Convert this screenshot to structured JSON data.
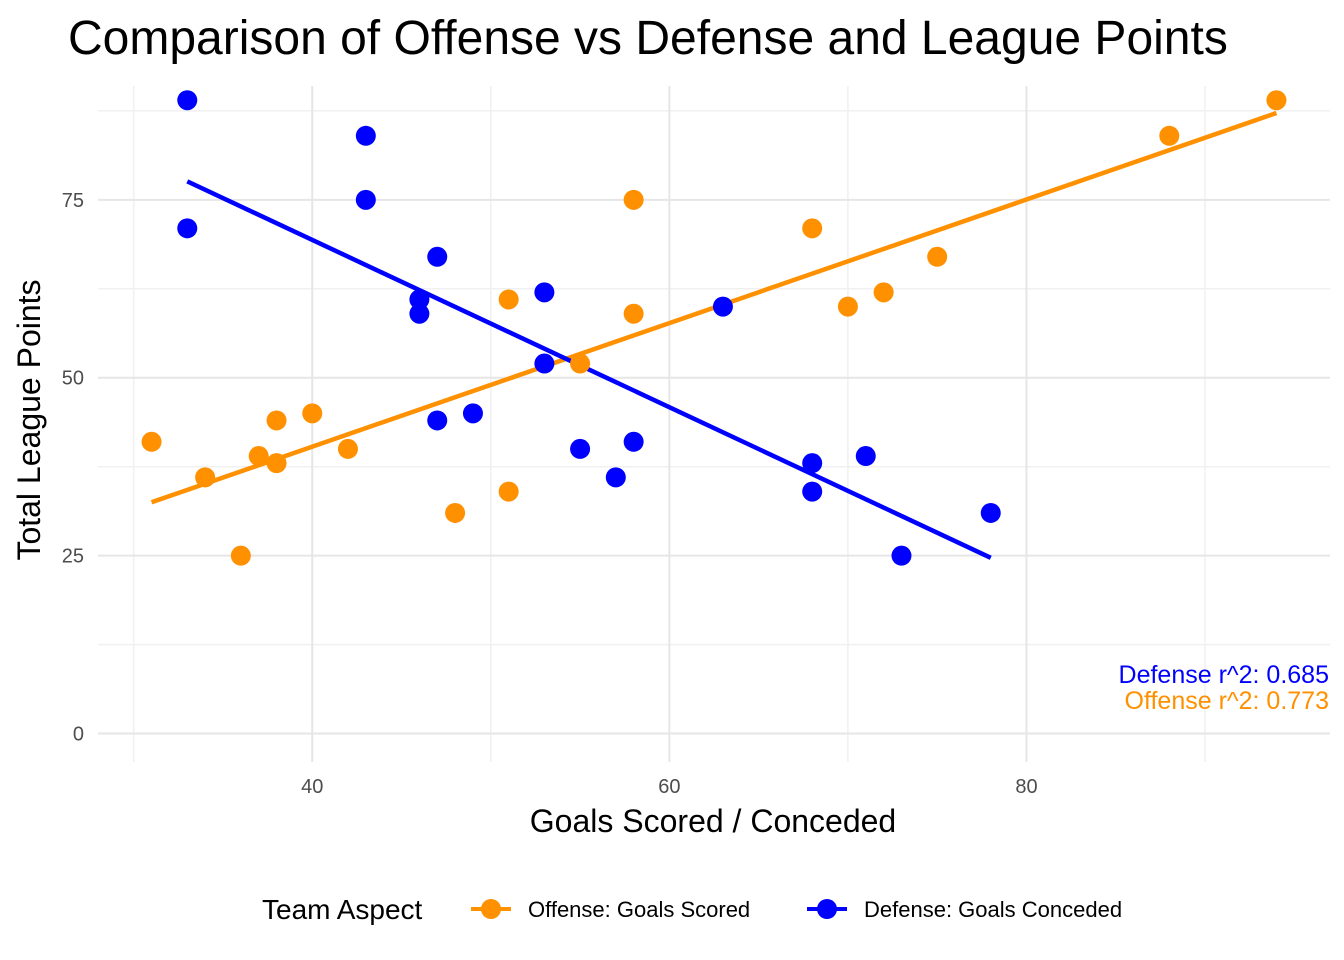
{
  "chart_data": {
    "type": "scatter",
    "title": "Comparison of Offense vs Defense and League Points",
    "xlabel": "Goals Scored / Conceded",
    "ylabel": "Total League Points",
    "xlim": [
      28,
      97
    ],
    "ylim": [
      -4,
      91
    ],
    "x_ticks": [
      40,
      60,
      80
    ],
    "y_ticks": [
      0,
      25,
      50,
      75
    ],
    "grid": true,
    "legend": {
      "title": "Team Aspect",
      "position": "bottom"
    },
    "series": [
      {
        "name": "Offense: Goals Scored",
        "color": "#FF9000",
        "points": [
          [
            31,
            41
          ],
          [
            34,
            36
          ],
          [
            36,
            25
          ],
          [
            37,
            39
          ],
          [
            38,
            38
          ],
          [
            38,
            44
          ],
          [
            40,
            45
          ],
          [
            42,
            40
          ],
          [
            48,
            31
          ],
          [
            51,
            34
          ],
          [
            51,
            61
          ],
          [
            55,
            52
          ],
          [
            58,
            59
          ],
          [
            58,
            75
          ],
          [
            68,
            71
          ],
          [
            70,
            60
          ],
          [
            72,
            62
          ],
          [
            75,
            67
          ],
          [
            88,
            84
          ],
          [
            94,
            89
          ]
        ],
        "fit_line": [
          [
            31,
            32.5
          ],
          [
            94,
            87.2
          ]
        ],
        "r2_label": "Offense r^2: 0.773"
      },
      {
        "name": "Defense: Goals Conceded",
        "color": "#0000FF",
        "points": [
          [
            33,
            89
          ],
          [
            33,
            71
          ],
          [
            43,
            84
          ],
          [
            43,
            75
          ],
          [
            46,
            61
          ],
          [
            46,
            59
          ],
          [
            47,
            67
          ],
          [
            47,
            44
          ],
          [
            49,
            45
          ],
          [
            53,
            62
          ],
          [
            53,
            52
          ],
          [
            55,
            40
          ],
          [
            57,
            36
          ],
          [
            58,
            41
          ],
          [
            63,
            60
          ],
          [
            68,
            38
          ],
          [
            68,
            34
          ],
          [
            71,
            39
          ],
          [
            73,
            25
          ],
          [
            78,
            31
          ]
        ],
        "fit_line": [
          [
            33,
            77.6
          ],
          [
            78,
            24.7
          ]
        ],
        "r2_label": "Defense r^2: 0.685"
      }
    ]
  }
}
